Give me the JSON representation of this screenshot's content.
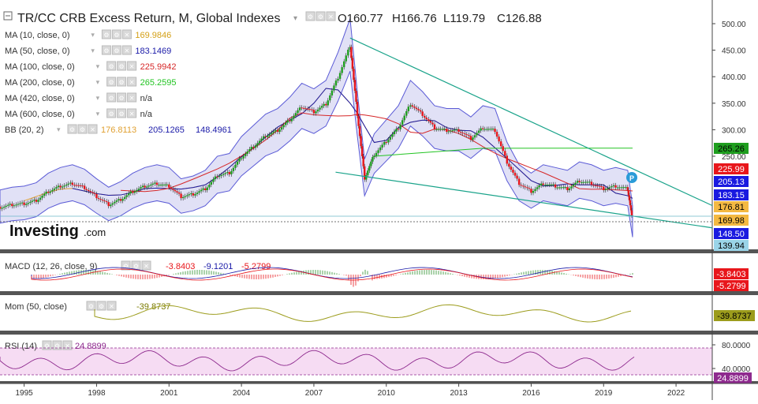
{
  "header": {
    "symbol_title": "TR/CC CRB Excess Return, M, Global Indexes",
    "ohlc": [
      {
        "key": "O",
        "value": "160.77"
      },
      {
        "key": "H",
        "value": "166.76"
      },
      {
        "key": "L",
        "value": "119.79"
      },
      {
        "key": "C",
        "value": "126.88"
      }
    ]
  },
  "watermark": {
    "brand": "Investing",
    "suffix": ".com"
  },
  "indicators": [
    {
      "label": "MA (10, close, 0)",
      "values": [
        {
          "text": "169.9846",
          "color": "#d4a017"
        }
      ]
    },
    {
      "label": "MA (50, close, 0)",
      "values": [
        {
          "text": "183.1469",
          "color": "#1a1aa8"
        }
      ]
    },
    {
      "label": "MA (100, close, 0)",
      "values": [
        {
          "text": "225.9942",
          "color": "#d62728"
        }
      ]
    },
    {
      "label": "MA (200, close, 0)",
      "values": [
        {
          "text": "265.2595",
          "color": "#22c422"
        }
      ]
    },
    {
      "label": "MA (420, close, 0)",
      "values": [
        {
          "text": "n/a",
          "color": "#333333"
        }
      ]
    },
    {
      "label": "MA (600, close, 0)",
      "values": [
        {
          "text": "n/a",
          "color": "#333333"
        }
      ]
    },
    {
      "label": "BB (20, 2)",
      "values": [
        {
          "text": "176.8113",
          "color": "#e0a030"
        },
        {
          "text": "205.1265",
          "color": "#1a1aa8"
        },
        {
          "text": "148.4961",
          "color": "#1a1aa8"
        }
      ]
    }
  ],
  "price_axis": {
    "ticks": [
      "500.00",
      "450.00",
      "400.00",
      "350.00",
      "300.00",
      "250.00"
    ],
    "tags": [
      {
        "text": "265.26",
        "value": 265.26,
        "bg": "#1f9e1f",
        "fg": "#000000"
      },
      {
        "text": "225.99",
        "value": 225.99,
        "bg": "#e8161b",
        "fg": "#ffffff"
      },
      {
        "text": "205.13",
        "value": 205.13,
        "bg": "#1a1ae0",
        "fg": "#ffffff"
      },
      {
        "text": "183.15",
        "value": 183.15,
        "bg": "#1a1ae0",
        "fg": "#ffffff"
      },
      {
        "text": "176.81",
        "value": 176.81,
        "bg": "#f4b942",
        "fg": "#000000"
      },
      {
        "text": "169.98",
        "value": 169.98,
        "bg": "#f4b942",
        "fg": "#000000"
      },
      {
        "text": "148.50",
        "value": 148.5,
        "bg": "#1a1ae0",
        "fg": "#ffffff"
      },
      {
        "text": "139.94",
        "value": 139.94,
        "bg": "#9ad4e8",
        "fg": "#000000"
      }
    ]
  },
  "macd": {
    "label": "MACD (12, 26, close, 9)",
    "values": [
      {
        "text": "-3.8403",
        "color": "#e8161b"
      },
      {
        "text": "-9.1201",
        "color": "#1a1aa8"
      },
      {
        "text": "-5.2799",
        "color": "#e8161b"
      }
    ],
    "tags": [
      {
        "text": "-3.8403",
        "bg": "#e8161b",
        "fg": "#ffffff"
      },
      {
        "text": "-5.2799",
        "bg": "#e8161b",
        "fg": "#ffffff"
      }
    ]
  },
  "mom": {
    "label": "Mom (50, close)",
    "value": {
      "text": "-39.8737",
      "color": "#7a7a00"
    },
    "tag": {
      "text": "-39.8737",
      "bg": "#9c9c1c",
      "fg": "#000000"
    }
  },
  "rsi": {
    "label": "RSI (14)",
    "value": {
      "text": "24.8899",
      "color": "#8e2a8e"
    },
    "ticks": [
      "80.0000",
      "40.0000"
    ],
    "tag": {
      "text": "24.8899",
      "bg": "#8e2a8e",
      "fg": "#ffffff"
    }
  },
  "event_marker": "P",
  "time_axis": [
    "1995",
    "1998",
    "2001",
    "2004",
    "2007",
    "2010",
    "2013",
    "2016",
    "2019",
    "2022"
  ],
  "chart_data": {
    "type": "line",
    "title": "TR/CC CRB Excess Return, M, Global Indexes",
    "xlabel": "",
    "ylabel": "",
    "xlim": [
      1994.0,
      2023.5
    ],
    "ylim": [
      125,
      510
    ],
    "series": [
      {
        "name": "close",
        "x": [
          1994.0,
          1994.5,
          1995.0,
          1995.5,
          1996.0,
          1996.5,
          1997.0,
          1997.5,
          1998.0,
          1998.5,
          1999.0,
          1999.5,
          2000.0,
          2000.5,
          2001.0,
          2001.5,
          2002.0,
          2002.5,
          2003.0,
          2003.5,
          2004.0,
          2004.5,
          2005.0,
          2005.5,
          2006.0,
          2006.5,
          2007.0,
          2007.5,
          2008.0,
          2008.5,
          2008.8,
          2009.1,
          2009.5,
          2010.0,
          2010.5,
          2011.0,
          2011.5,
          2012.0,
          2012.5,
          2013.0,
          2013.5,
          2014.0,
          2014.5,
          2015.0,
          2015.5,
          2016.0,
          2016.5,
          2017.0,
          2017.5,
          2018.0,
          2018.5,
          2019.0,
          2019.5,
          2020.0,
          2020.2
        ],
        "values": [
          155,
          160,
          162,
          168,
          185,
          195,
          200,
          192,
          175,
          160,
          170,
          185,
          195,
          200,
          195,
          175,
          180,
          190,
          215,
          220,
          250,
          270,
          290,
          300,
          320,
          345,
          335,
          350,
          400,
          460,
          330,
          210,
          255,
          280,
          305,
          350,
          330,
          305,
          300,
          300,
          285,
          305,
          300,
          240,
          200,
          185,
          200,
          195,
          190,
          205,
          200,
          190,
          195,
          190,
          127
        ]
      }
    ],
    "trendlines": [
      {
        "name": "upper",
        "from": [
          2008.5,
          473
        ],
        "to": [
          2023.5,
          157
        ]
      },
      {
        "name": "lower",
        "from": [
          2007.9,
          220
        ],
        "to": [
          2023.5,
          115
        ]
      }
    ]
  }
}
